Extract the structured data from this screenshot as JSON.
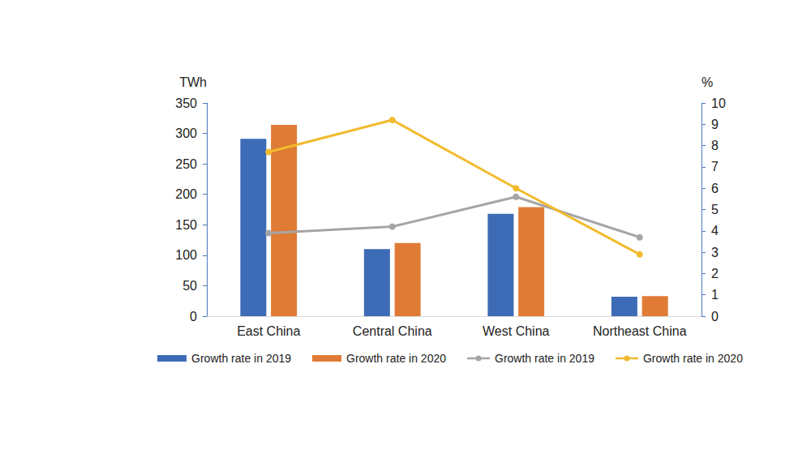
{
  "chart_data": {
    "type": "bar",
    "categories": [
      "East China",
      "Central China",
      "West China",
      "Northeast China"
    ],
    "ylabel": "TWh",
    "y2label": "%",
    "ylim": [
      0,
      350
    ],
    "yticks": [
      0,
      50,
      100,
      150,
      200,
      250,
      300,
      350
    ],
    "y2lim": [
      0,
      10
    ],
    "y2ticks": [
      0,
      1,
      2,
      3,
      4,
      5,
      6,
      7,
      8,
      9,
      10
    ],
    "grid": false,
    "legend": "bottom",
    "series": [
      {
        "name": "Growth rate in 2019",
        "type": "bar",
        "color": "#3d6bb5",
        "values": [
          291,
          110,
          168,
          32
        ]
      },
      {
        "name": "Growth rate in 2020",
        "type": "bar",
        "color": "#e07b35",
        "values": [
          314,
          120,
          179,
          33
        ]
      },
      {
        "name": "Growth rate in 2019",
        "type": "line",
        "axis": "y2",
        "color": "#a5a5a5",
        "marker": "circle",
        "values": [
          3.9,
          4.2,
          5.6,
          3.7
        ]
      },
      {
        "name": "Growth rate in 2020",
        "type": "line",
        "axis": "y2",
        "color": "#f2bb2e",
        "marker": "circle",
        "values": [
          7.7,
          9.2,
          6.0,
          2.9
        ]
      }
    ]
  }
}
